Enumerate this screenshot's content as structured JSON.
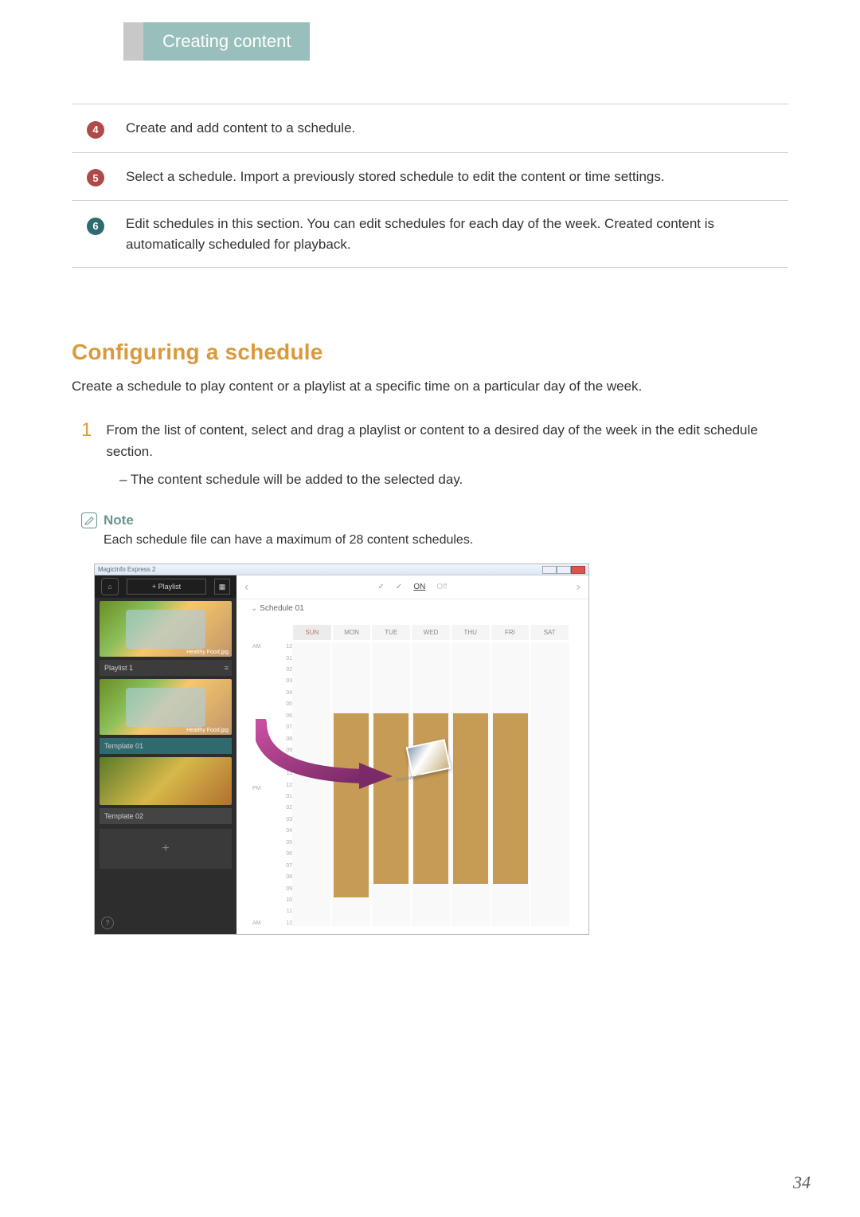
{
  "header": {
    "tab": "Creating content"
  },
  "callouts": [
    {
      "n": "4",
      "color": "#b04a4a",
      "text": "Create and add content to a schedule."
    },
    {
      "n": "5",
      "color": "#b04a4a",
      "text": "Select a schedule. Import a previously stored schedule to edit the content or time settings."
    },
    {
      "n": "6",
      "color": "#2f6a6f",
      "text": "Edit schedules in this section. You can edit schedules for each day of the week. Created content is automatically scheduled for playback."
    }
  ],
  "section": {
    "title": "Configuring a schedule",
    "intro": "Create a schedule to play content or a playlist at a specific time on a particular day of the week.",
    "step_num": "1",
    "step_text": "From the list of content, select and drag a playlist or content to a desired day of the week in the edit schedule section.",
    "sub_text": "The content schedule will be added to the selected day."
  },
  "note": {
    "label": "Note",
    "body": "Each schedule file can have a maximum of 28 content schedules."
  },
  "shot": {
    "app_title": "MagicInfo Express 2",
    "playlist_btn": "+  Playlist",
    "playlist1": "Playlist 1",
    "template01": "Template 01",
    "template02": "Template 02",
    "thumb_tag": "Healthy Food.jpg",
    "schedule_name": "Schedule 01",
    "top_on": "ON",
    "days": [
      "SUN",
      "MON",
      "TUE",
      "WED",
      "THU",
      "FRI",
      "SAT"
    ],
    "hours": [
      "12",
      "01",
      "02",
      "03",
      "04",
      "05",
      "06",
      "07",
      "08",
      "09",
      "10",
      "11",
      "12",
      "01",
      "02",
      "03",
      "04",
      "05",
      "06",
      "07",
      "08",
      "09",
      "10",
      "11",
      "12"
    ],
    "am": "AM",
    "pm": "PM",
    "drag_label": "Template 01"
  },
  "page_number": "34"
}
